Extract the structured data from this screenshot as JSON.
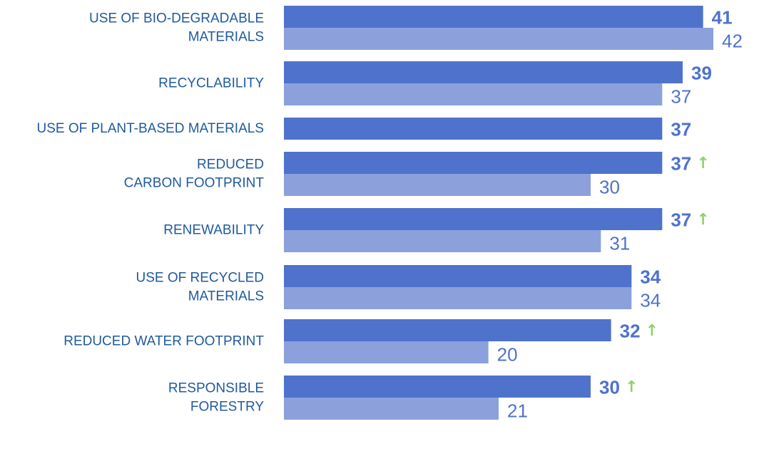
{
  "chart_data": {
    "type": "bar",
    "orientation": "horizontal",
    "categories": [
      [
        "USE OF BIO-DEGRADABLE",
        "MATERIALS"
      ],
      [
        "RECYCLABILITY"
      ],
      [
        "USE OF PLANT-BASED MATERIALS"
      ],
      [
        "REDUCED",
        "CARBON FOOTPRINT"
      ],
      [
        "RENEWABILITY"
      ],
      [
        "USE OF RECYCLED",
        "MATERIALS"
      ],
      [
        "REDUCED WATER FOOTPRINT"
      ],
      [
        "RESPONSIBLE",
        "FORESTRY"
      ]
    ],
    "series": [
      {
        "values": [
          41,
          39,
          37,
          37,
          37,
          34,
          32,
          30
        ]
      },
      {
        "values": [
          42,
          37,
          null,
          30,
          31,
          34,
          20,
          21
        ]
      }
    ],
    "increase_markers": [
      false,
      false,
      false,
      true,
      true,
      false,
      true,
      true
    ],
    "arrow_glyph": "↑",
    "colors": {
      "primary": "#4f72cc",
      "secondary": "#8ca1dc",
      "label_text": "#1f5a9c",
      "value_text": "#4f72cc",
      "arrow": "#8fd16a"
    },
    "xlim": [
      0,
      42
    ],
    "grid": false,
    "legend": "none"
  }
}
